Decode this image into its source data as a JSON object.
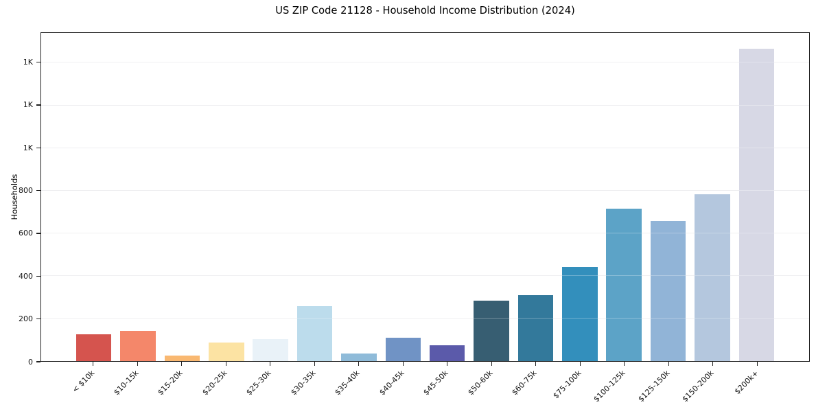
{
  "chart_data": {
    "type": "bar",
    "title": "US ZIP Code 21128 - Household Income Distribution (2024)",
    "xlabel": "",
    "ylabel": "Households",
    "categories": [
      "< $10k",
      "$10-15k",
      "$15-20k",
      "$20-25k",
      "$25-30k",
      "$30-35k",
      "$35-40k",
      "$40-45k",
      "$45-50k",
      "$50-60k",
      "$60-75k",
      "$75-100k",
      "$100-125k",
      "$125-150k",
      "$150-200k",
      "$200k+"
    ],
    "values": [
      127,
      141,
      25,
      87,
      103,
      259,
      36,
      110,
      73,
      283,
      309,
      443,
      716,
      657,
      782,
      1467
    ],
    "bar_colors": [
      "#d5544e",
      "#f4876a",
      "#f9b871",
      "#fce3a3",
      "#e9f2f8",
      "#bcdcec",
      "#8fbbd9",
      "#7093c5",
      "#5b5aaa",
      "#375e72",
      "#33799b",
      "#338fbc",
      "#5ca3c7",
      "#91b4d7",
      "#b4c7de",
      "#d7d8e5"
    ],
    "ylim": [
      0,
      1540
    ],
    "yticks": [
      {
        "value": 0,
        "label": "0"
      },
      {
        "value": 200,
        "label": "200"
      },
      {
        "value": 400,
        "label": "400"
      },
      {
        "value": 600,
        "label": "600"
      },
      {
        "value": 800,
        "label": "800"
      },
      {
        "value": 1000,
        "label": "1K"
      },
      {
        "value": 1200,
        "label": "1K"
      },
      {
        "value": 1400,
        "label": "1K"
      }
    ],
    "grid": "horizontal-only",
    "legend": "none",
    "colors": {
      "background": "#ffffff",
      "spine": "#1f1f1f",
      "grid": "#e8e8eb",
      "text": "#111111"
    }
  }
}
